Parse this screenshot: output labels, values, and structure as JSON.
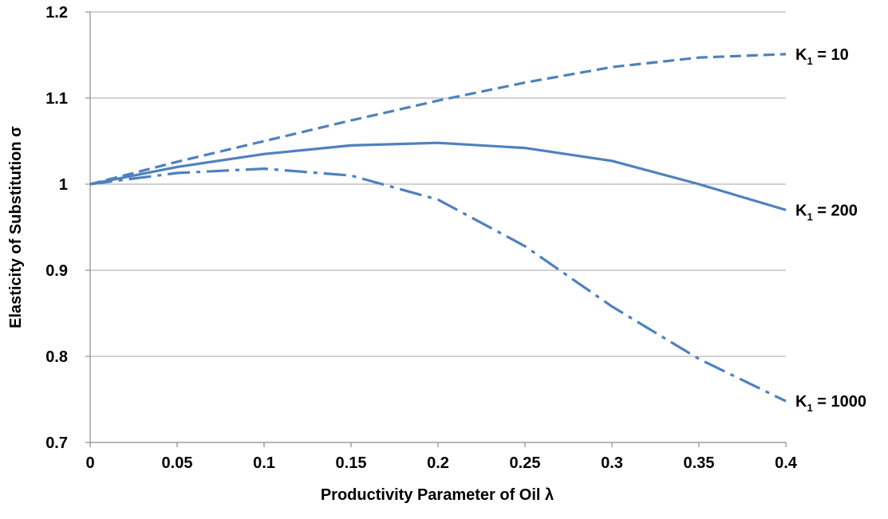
{
  "chart_data": {
    "type": "line",
    "xlabel": "Productivity Parameter of Oil λ",
    "ylabel": "Elasticity of Substitution σ",
    "xlim": [
      0,
      0.4
    ],
    "ylim": [
      0.7,
      1.2
    ],
    "x_ticks": [
      "0",
      "0.05",
      "0.1",
      "0.15",
      "0.2",
      "0.25",
      "0.3",
      "0.35",
      "0.4"
    ],
    "y_ticks": [
      "0.7",
      "0.8",
      "0.9",
      "1",
      "1.1",
      "1.2"
    ],
    "grid": "horizontal",
    "line_color": "#4f81bd",
    "series": [
      {
        "name": "K1 = 10",
        "label_main": "K",
        "label_sub": "1",
        "label_rest": " = 10",
        "style": "dashed",
        "x": [
          0,
          0.05,
          0.1,
          0.15,
          0.2,
          0.25,
          0.3,
          0.35,
          0.4
        ],
        "y": [
          1.0,
          1.026,
          1.05,
          1.074,
          1.097,
          1.118,
          1.136,
          1.147,
          1.151
        ]
      },
      {
        "name": "K1 = 200",
        "label_main": "K",
        "label_sub": "1",
        "label_rest": " = 200",
        "style": "solid",
        "x": [
          0,
          0.05,
          0.1,
          0.15,
          0.2,
          0.25,
          0.3,
          0.35,
          0.4
        ],
        "y": [
          1.0,
          1.02,
          1.035,
          1.045,
          1.048,
          1.042,
          1.027,
          1.0,
          0.97
        ]
      },
      {
        "name": "K1 = 1000",
        "label_main": "K",
        "label_sub": "1",
        "label_rest": " = 1000",
        "style": "dashdot",
        "x": [
          0,
          0.05,
          0.1,
          0.15,
          0.2,
          0.25,
          0.3,
          0.35,
          0.4
        ],
        "y": [
          1.0,
          1.013,
          1.018,
          1.01,
          0.982,
          0.928,
          0.858,
          0.797,
          0.748
        ]
      }
    ]
  }
}
